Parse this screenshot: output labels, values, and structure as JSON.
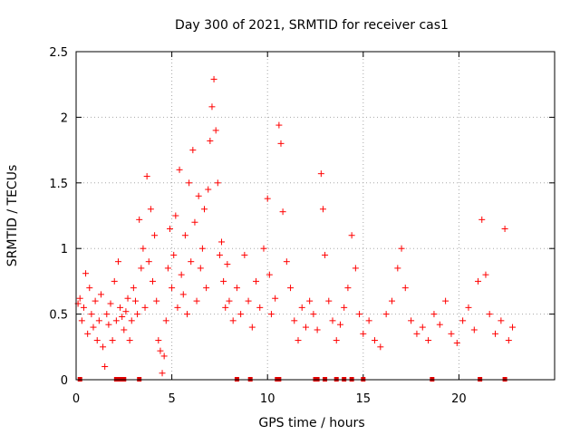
{
  "chart_data": {
    "type": "scatter",
    "title": "Day 300 of 2021, SRMTID for receiver cas1",
    "xlabel": "GPS time / hours",
    "ylabel": "SRMTID / TECUs",
    "xlim": [
      0,
      25
    ],
    "ylim": [
      0,
      2.5
    ],
    "xticks": [
      0,
      5,
      10,
      15,
      20
    ],
    "xtick_labels": [
      "0",
      "5",
      "10",
      "15",
      "20"
    ],
    "yticks": [
      0,
      0.5,
      1,
      1.5,
      2,
      2.5
    ],
    "ytick_labels": [
      "0",
      "0.5",
      "1",
      "1.5",
      "2",
      "2.5"
    ],
    "grid": true,
    "marker": "+",
    "color": "#ff0000",
    "series": [
      {
        "name": "SRMTID",
        "points": [
          [
            0.1,
            0.58
          ],
          [
            0.2,
            0.62
          ],
          [
            0.3,
            0.45
          ],
          [
            0.4,
            0.55
          ],
          [
            0.5,
            0.81
          ],
          [
            0.6,
            0.35
          ],
          [
            0.7,
            0.7
          ],
          [
            0.8,
            0.5
          ],
          [
            0.9,
            0.4
          ],
          [
            1.0,
            0.6
          ],
          [
            1.1,
            0.3
          ],
          [
            1.2,
            0.45
          ],
          [
            1.3,
            0.65
          ],
          [
            1.4,
            0.25
          ],
          [
            1.5,
            0.1
          ],
          [
            1.6,
            0.5
          ],
          [
            1.7,
            0.42
          ],
          [
            1.8,
            0.58
          ],
          [
            1.9,
            0.3
          ],
          [
            2.0,
            0.75
          ],
          [
            2.1,
            0.45
          ],
          [
            2.2,
            0.9
          ],
          [
            2.3,
            0.55
          ],
          [
            2.4,
            0.48
          ],
          [
            2.5,
            0.38
          ],
          [
            2.6,
            0.52
          ],
          [
            2.7,
            0.62
          ],
          [
            2.8,
            0.3
          ],
          [
            2.9,
            0.45
          ],
          [
            3.0,
            0.7
          ],
          [
            3.1,
            0.6
          ],
          [
            3.2,
            0.5
          ],
          [
            3.3,
            1.22
          ],
          [
            3.4,
            0.85
          ],
          [
            3.5,
            1.0
          ],
          [
            3.6,
            0.55
          ],
          [
            3.7,
            1.55
          ],
          [
            3.8,
            0.9
          ],
          [
            3.9,
            1.3
          ],
          [
            4.0,
            0.75
          ],
          [
            4.1,
            1.1
          ],
          [
            4.2,
            0.6
          ],
          [
            4.3,
            0.3
          ],
          [
            4.4,
            0.22
          ],
          [
            4.5,
            0.05
          ],
          [
            4.6,
            0.18
          ],
          [
            4.7,
            0.45
          ],
          [
            4.8,
            0.85
          ],
          [
            4.9,
            1.15
          ],
          [
            5.0,
            0.7
          ],
          [
            5.1,
            0.95
          ],
          [
            5.2,
            1.25
          ],
          [
            5.3,
            0.55
          ],
          [
            5.4,
            1.6
          ],
          [
            5.5,
            0.8
          ],
          [
            5.6,
            0.65
          ],
          [
            5.7,
            1.1
          ],
          [
            5.8,
            0.5
          ],
          [
            5.9,
            1.5
          ],
          [
            6.0,
            0.9
          ],
          [
            6.1,
            1.75
          ],
          [
            6.2,
            1.2
          ],
          [
            6.3,
            0.6
          ],
          [
            6.4,
            1.4
          ],
          [
            6.5,
            0.85
          ],
          [
            6.6,
            1.0
          ],
          [
            6.7,
            1.3
          ],
          [
            6.8,
            0.7
          ],
          [
            6.9,
            1.45
          ],
          [
            7.0,
            1.82
          ],
          [
            7.1,
            2.08
          ],
          [
            7.2,
            2.29
          ],
          [
            7.3,
            1.9
          ],
          [
            7.4,
            1.5
          ],
          [
            7.5,
            0.95
          ],
          [
            7.6,
            1.05
          ],
          [
            7.7,
            0.75
          ],
          [
            7.8,
            0.55
          ],
          [
            7.9,
            0.88
          ],
          [
            8.0,
            0.6
          ],
          [
            8.2,
            0.45
          ],
          [
            8.4,
            0.7
          ],
          [
            8.6,
            0.5
          ],
          [
            8.8,
            0.95
          ],
          [
            9.0,
            0.6
          ],
          [
            9.2,
            0.4
          ],
          [
            9.4,
            0.75
          ],
          [
            9.6,
            0.55
          ],
          [
            9.8,
            1.0
          ],
          [
            10.0,
            1.38
          ],
          [
            10.1,
            0.8
          ],
          [
            10.2,
            0.5
          ],
          [
            10.4,
            0.62
          ],
          [
            10.6,
            1.94
          ],
          [
            10.7,
            1.8
          ],
          [
            10.8,
            1.28
          ],
          [
            11.0,
            0.9
          ],
          [
            11.2,
            0.7
          ],
          [
            11.4,
            0.45
          ],
          [
            11.6,
            0.3
          ],
          [
            11.8,
            0.55
          ],
          [
            12.0,
            0.4
          ],
          [
            12.2,
            0.6
          ],
          [
            12.4,
            0.5
          ],
          [
            12.6,
            0.38
          ],
          [
            12.8,
            1.57
          ],
          [
            12.9,
            1.3
          ],
          [
            13.0,
            0.95
          ],
          [
            13.2,
            0.6
          ],
          [
            13.4,
            0.45
          ],
          [
            13.6,
            0.3
          ],
          [
            13.8,
            0.42
          ],
          [
            14.0,
            0.55
          ],
          [
            14.2,
            0.7
          ],
          [
            14.4,
            1.1
          ],
          [
            14.6,
            0.85
          ],
          [
            14.8,
            0.5
          ],
          [
            15.0,
            0.35
          ],
          [
            15.3,
            0.45
          ],
          [
            15.6,
            0.3
          ],
          [
            15.9,
            0.25
          ],
          [
            16.2,
            0.5
          ],
          [
            16.5,
            0.6
          ],
          [
            16.8,
            0.85
          ],
          [
            17.0,
            1.0
          ],
          [
            17.2,
            0.7
          ],
          [
            17.5,
            0.45
          ],
          [
            17.8,
            0.35
          ],
          [
            18.1,
            0.4
          ],
          [
            18.4,
            0.3
          ],
          [
            18.7,
            0.5
          ],
          [
            19.0,
            0.42
          ],
          [
            19.3,
            0.6
          ],
          [
            19.6,
            0.35
          ],
          [
            19.9,
            0.28
          ],
          [
            20.2,
            0.45
          ],
          [
            20.5,
            0.55
          ],
          [
            20.8,
            0.38
          ],
          [
            21.0,
            0.75
          ],
          [
            21.2,
            1.22
          ],
          [
            21.4,
            0.8
          ],
          [
            21.6,
            0.5
          ],
          [
            21.9,
            0.35
          ],
          [
            22.2,
            0.45
          ],
          [
            22.4,
            1.15
          ],
          [
            22.6,
            0.3
          ],
          [
            22.8,
            0.4
          ]
        ]
      }
    ],
    "gaps_at_zero": [
      0.2,
      2.1,
      2.3,
      2.5,
      3.3,
      8.4,
      9.1,
      10.5,
      10.6,
      12.5,
      12.6,
      13.0,
      13.6,
      14.0,
      14.4,
      15.0,
      18.6,
      21.1,
      22.4
    ]
  }
}
